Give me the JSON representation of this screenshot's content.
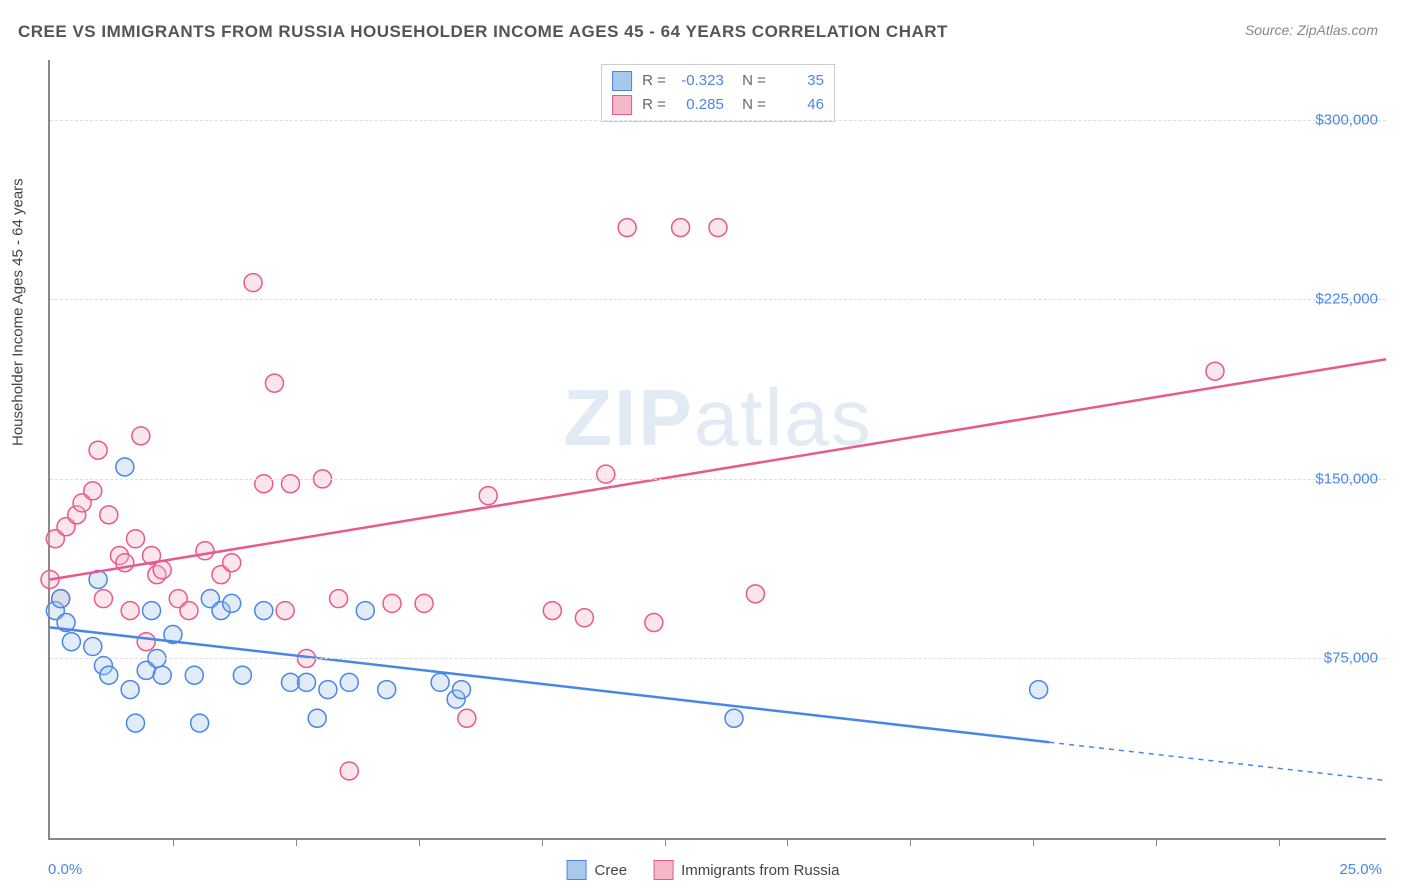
{
  "title": "CREE VS IMMIGRANTS FROM RUSSIA HOUSEHOLDER INCOME AGES 45 - 64 YEARS CORRELATION CHART",
  "source": "Source: ZipAtlas.com",
  "y_axis_title": "Householder Income Ages 45 - 64 years",
  "watermark_a": "ZIP",
  "watermark_b": "atlas",
  "x_start": "0.0%",
  "x_end": "25.0%",
  "chart": {
    "type": "scatter",
    "x_domain": [
      0,
      25
    ],
    "y_domain": [
      0,
      325000
    ],
    "y_ticks": [
      75000,
      150000,
      225000,
      300000
    ],
    "y_tick_labels": [
      "$75,000",
      "$150,000",
      "$225,000",
      "$300,000"
    ],
    "x_ticks": [
      2.3,
      4.6,
      6.9,
      9.2,
      11.5,
      13.8,
      16.1,
      18.4,
      20.7,
      23.0
    ],
    "grid_color": "#dddddd",
    "axis_color": "#888888",
    "label_color": "#4a86e8",
    "point_radius": 9
  },
  "series": {
    "cree": {
      "label": "Cree",
      "fill": "#a8c8ec",
      "stroke": "#4a86e8",
      "R": "-0.323",
      "N": "35",
      "points": [
        [
          0.1,
          95000
        ],
        [
          0.3,
          90000
        ],
        [
          0.2,
          100000
        ],
        [
          0.4,
          82000
        ],
        [
          0.8,
          80000
        ],
        [
          0.9,
          108000
        ],
        [
          1.0,
          72000
        ],
        [
          1.1,
          68000
        ],
        [
          1.4,
          155000
        ],
        [
          1.5,
          62000
        ],
        [
          1.6,
          48000
        ],
        [
          1.8,
          70000
        ],
        [
          1.9,
          95000
        ],
        [
          2.0,
          75000
        ],
        [
          2.1,
          68000
        ],
        [
          2.3,
          85000
        ],
        [
          2.7,
          68000
        ],
        [
          2.8,
          48000
        ],
        [
          3.0,
          100000
        ],
        [
          3.2,
          95000
        ],
        [
          3.4,
          98000
        ],
        [
          3.6,
          68000
        ],
        [
          4.0,
          95000
        ],
        [
          4.5,
          65000
        ],
        [
          4.8,
          65000
        ],
        [
          5.0,
          50000
        ],
        [
          5.2,
          62000
        ],
        [
          5.6,
          65000
        ],
        [
          5.9,
          95000
        ],
        [
          6.3,
          62000
        ],
        [
          7.3,
          65000
        ],
        [
          7.6,
          58000
        ],
        [
          7.7,
          62000
        ],
        [
          12.8,
          50000
        ],
        [
          18.5,
          62000
        ]
      ],
      "trend": {
        "x1": 0,
        "y1": 88000,
        "x2": 18.7,
        "y2": 40000,
        "x2_dash": 25,
        "y2_dash": 24000
      }
    },
    "russia": {
      "label": "Immigrants from Russia",
      "fill": "#f4b8c8",
      "stroke": "#e85a8a",
      "R": "0.285",
      "N": "46",
      "points": [
        [
          0.0,
          108000
        ],
        [
          0.1,
          125000
        ],
        [
          0.2,
          100000
        ],
        [
          0.3,
          130000
        ],
        [
          0.5,
          135000
        ],
        [
          0.6,
          140000
        ],
        [
          0.8,
          145000
        ],
        [
          0.9,
          162000
        ],
        [
          1.0,
          100000
        ],
        [
          1.1,
          135000
        ],
        [
          1.3,
          118000
        ],
        [
          1.4,
          115000
        ],
        [
          1.5,
          95000
        ],
        [
          1.6,
          125000
        ],
        [
          1.7,
          168000
        ],
        [
          1.8,
          82000
        ],
        [
          1.9,
          118000
        ],
        [
          2.0,
          110000
        ],
        [
          2.1,
          112000
        ],
        [
          2.4,
          100000
        ],
        [
          2.6,
          95000
        ],
        [
          2.9,
          120000
        ],
        [
          3.2,
          110000
        ],
        [
          3.4,
          115000
        ],
        [
          3.8,
          232000
        ],
        [
          4.0,
          148000
        ],
        [
          4.2,
          190000
        ],
        [
          4.4,
          95000
        ],
        [
          4.5,
          148000
        ],
        [
          4.8,
          75000
        ],
        [
          5.1,
          150000
        ],
        [
          5.4,
          100000
        ],
        [
          5.6,
          28000
        ],
        [
          6.4,
          98000
        ],
        [
          7.0,
          98000
        ],
        [
          7.8,
          50000
        ],
        [
          8.2,
          143000
        ],
        [
          9.4,
          95000
        ],
        [
          10.0,
          92000
        ],
        [
          10.4,
          152000
        ],
        [
          10.8,
          255000
        ],
        [
          11.3,
          90000
        ],
        [
          11.8,
          255000
        ],
        [
          12.5,
          255000
        ],
        [
          13.2,
          102000
        ],
        [
          21.8,
          195000
        ]
      ],
      "trend": {
        "x1": 0,
        "y1": 108000,
        "x2": 25,
        "y2": 200000
      }
    }
  }
}
